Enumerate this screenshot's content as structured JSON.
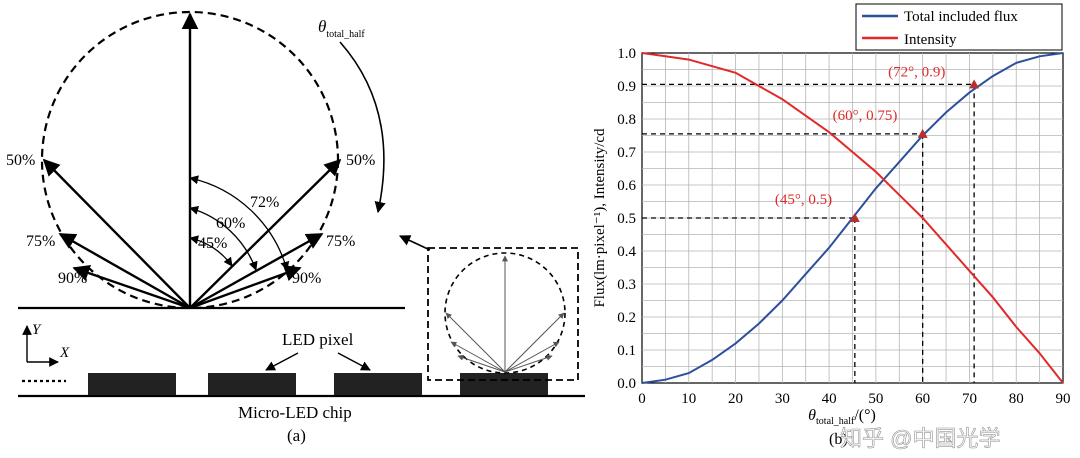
{
  "panel_a": {
    "labels": {
      "theta": "θ",
      "theta_sub": "total_half",
      "pct_50_left": "50%",
      "pct_75_left": "75%",
      "pct_90_left": "90%",
      "pct_50_right": "50%",
      "pct_75_right": "75%",
      "pct_90_right": "90%",
      "angle_72": "72%",
      "angle_60": "60%",
      "angle_45": "45%",
      "axis_y": "Y",
      "axis_x": "X",
      "led_pixel": "LED pixel",
      "chip": "Micro-LED chip",
      "caption": "(a)"
    }
  },
  "panel_b": {
    "caption": "(b)",
    "watermark": "知乎 @中国光学"
  },
  "chart_data": {
    "type": "line",
    "xlabel_main": "θ",
    "xlabel_sub": "total_half",
    "xlabel_unit": "/(°)",
    "ylabel": "Flux(lm·pixel⁻¹), Intensity/cd",
    "xlim": [
      0,
      90
    ],
    "ylim": [
      0,
      1
    ],
    "xticks": [
      "0",
      "10",
      "20",
      "30",
      "40",
      "50",
      "60",
      "70",
      "80",
      "90"
    ],
    "yticks": [
      "0.0",
      "0.1",
      "0.2",
      "0.3",
      "0.4",
      "0.5",
      "0.6",
      "0.7",
      "0.8",
      "0.9",
      "1.0"
    ],
    "grid": true,
    "legend_position": "top-left",
    "series": [
      {
        "name": "Total included flux",
        "color": "#2e4f9e",
        "x": [
          0,
          5,
          10,
          15,
          20,
          25,
          30,
          35,
          40,
          45,
          50,
          55,
          60,
          65,
          70,
          75,
          80,
          85,
          90
        ],
        "y": [
          0.0,
          0.01,
          0.03,
          0.07,
          0.12,
          0.18,
          0.25,
          0.33,
          0.41,
          0.5,
          0.59,
          0.67,
          0.75,
          0.82,
          0.88,
          0.93,
          0.97,
          0.99,
          1.0
        ]
      },
      {
        "name": "Intensity",
        "color": "#e02a2a",
        "x": [
          0,
          5,
          10,
          15,
          20,
          25,
          30,
          35,
          40,
          45,
          50,
          55,
          60,
          65,
          70,
          75,
          80,
          85,
          90
        ],
        "y": [
          1.0,
          0.99,
          0.98,
          0.96,
          0.94,
          0.9,
          0.86,
          0.81,
          0.76,
          0.7,
          0.64,
          0.57,
          0.5,
          0.42,
          0.34,
          0.26,
          0.17,
          0.09,
          0.0
        ]
      }
    ],
    "annotations": [
      {
        "label": "(45°, 0.5)",
        "x": 45.5,
        "y": 0.5
      },
      {
        "label": "(60°, 0.75)",
        "x": 60,
        "y": 0.755
      },
      {
        "label": "(72°, 0.9)",
        "x": 71,
        "y": 0.905
      }
    ],
    "annotation_color": "#e02a2a"
  }
}
